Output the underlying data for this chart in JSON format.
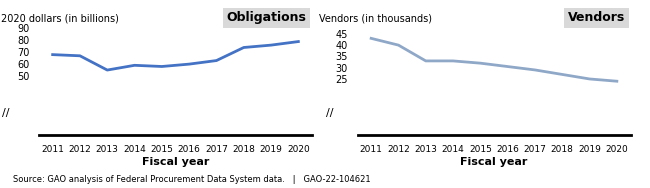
{
  "years": [
    2011,
    2012,
    2013,
    2014,
    2015,
    2016,
    2017,
    2018,
    2019,
    2020
  ],
  "obligations": [
    68,
    67,
    55,
    59,
    58,
    60,
    63,
    74,
    76,
    79
  ],
  "vendors": [
    43,
    40,
    33,
    33,
    32,
    30.5,
    29,
    27,
    25,
    24
  ],
  "obligations_yticks": [
    0,
    50,
    60,
    70,
    80,
    90
  ],
  "vendors_yticks": [
    0,
    25,
    30,
    35,
    40,
    45
  ],
  "oblig_color": "#4472C4",
  "vendor_color": "#8FA8C8",
  "title_oblig": "Obligations",
  "title_vendor": "Vendors",
  "ylabel_oblig": "2020 dollars (in billions)",
  "ylabel_vendor": "Vendors (in thousands)",
  "xlabel": "Fiscal year",
  "source_text": "Source: GAO analysis of Federal Procurement Data System data.   |   GAO-22-104621",
  "background_color": "#ffffff",
  "legend_bg": "#d9d9d9"
}
